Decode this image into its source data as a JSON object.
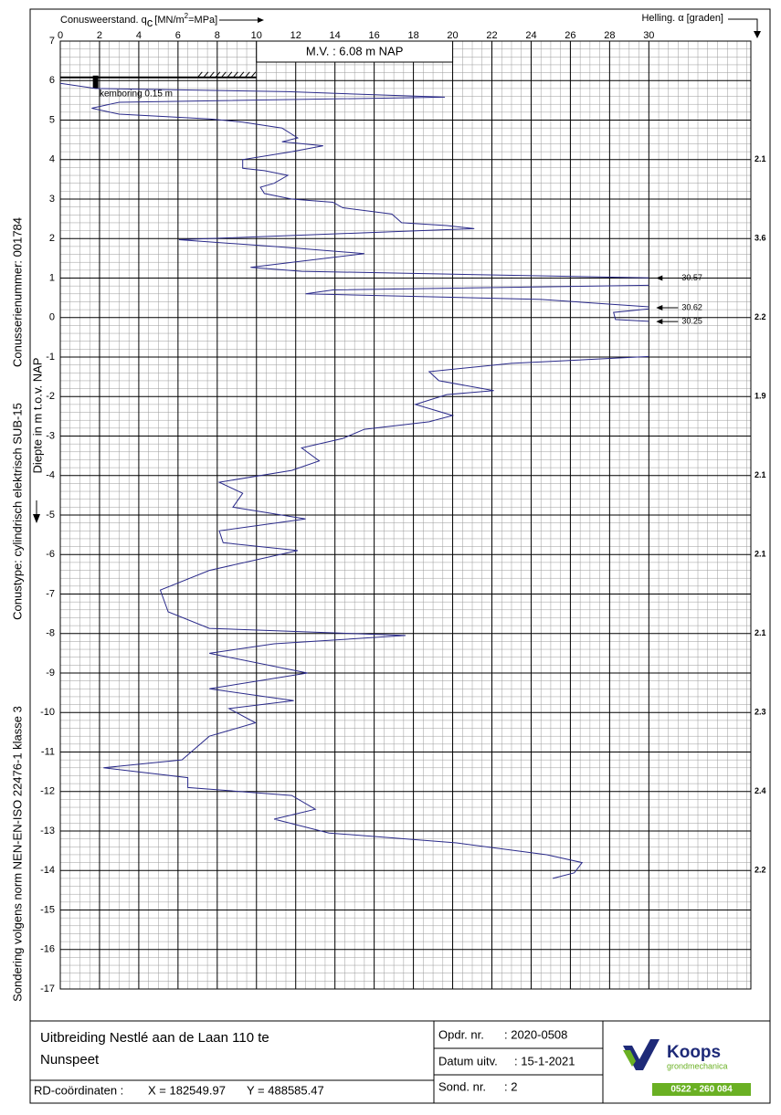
{
  "chart_data": {
    "type": "cpt",
    "x_label": [
      "Conusweerstand. q",
      "c",
      "[MN/m",
      "2",
      "=MPa]"
    ],
    "y2_label": "Helling. α [graden]",
    "y_label": "Diepte in m t.o.v. NAP",
    "side_notes": [
      "Conusserienummer:  001784",
      "Conustype: cylindrisch elektrisch SUB-15",
      "Sondering volgens norm NEN-EN-ISO 22476-1 klasse 3"
    ],
    "ground_level_note": "M.V. :  6.08    m   NAP",
    "ground_level": 6.08,
    "predrill_note": "kemboring    0.15   m",
    "xlim": [
      0,
      35.2
    ],
    "ylim": [
      7,
      -17
    ],
    "xticks": [
      0,
      2,
      4,
      6,
      8,
      10,
      12,
      14,
      16,
      18,
      20,
      22,
      24,
      26,
      28,
      30
    ],
    "yticks": [
      7,
      6,
      5,
      4,
      3,
      2,
      1,
      0,
      -1,
      -2,
      -3,
      -4,
      -5,
      -6,
      -7,
      -8,
      -9,
      -10,
      -11,
      -12,
      -13,
      -14,
      -15,
      -16,
      -17
    ],
    "minor_grid": {
      "x": 0.5,
      "y": 0.2
    },
    "grid": true,
    "clip_x": 30,
    "color": "#2a2a8a",
    "qc": [
      0,
      1.8,
      11.6,
      19.6,
      3,
      1.6,
      3,
      7.6,
      9.3,
      11.3,
      12.1,
      11.3,
      13.4,
      11.8,
      9.3,
      9.3,
      10.4,
      11.6,
      10.9,
      10.2,
      10.4,
      11.8,
      13.9,
      14.4,
      16.9,
      17.4,
      19.7,
      21.1,
      6.05,
      10.9,
      15.5,
      9.7,
      12.3,
      30.57,
      30.3,
      13.9,
      12.5,
      24.5,
      30.62,
      28.2,
      28.3,
      30.25,
      30.3,
      30.3,
      23,
      18.8,
      19.3,
      22.1,
      19.7,
      18.1,
      20,
      18.8,
      15.5,
      14.4,
      12.3,
      13.2,
      11.8,
      8.1,
      9.3,
      8.8,
      12.5,
      8.1,
      8.3,
      12.1,
      7.6,
      5.1,
      5.5,
      7.6,
      17.6,
      10.9,
      7.6,
      12.6,
      7.6,
      11.9,
      8.6,
      9.95,
      7.6,
      6.2,
      2.2,
      6.5,
      6.5,
      11.8,
      13,
      10.9,
      13.7,
      20.2,
      24.8,
      26.6,
      26.2,
      25.1
    ],
    "depth": [
      5.93,
      5.8,
      5.72,
      5.58,
      5.45,
      5.3,
      5.15,
      5.03,
      4.95,
      4.8,
      4.55,
      4.45,
      4.35,
      4.2,
      4.0,
      3.78,
      3.72,
      3.6,
      3.4,
      3.3,
      3.14,
      3.0,
      2.92,
      2.78,
      2.62,
      2.4,
      2.33,
      2.25,
      1.97,
      1.8,
      1.62,
      1.27,
      1.17,
      1.0,
      0.82,
      0.7,
      0.6,
      0.46,
      0.25,
      0.13,
      -0.05,
      -0.1,
      -0.5,
      -0.98,
      -1.16,
      -1.37,
      -1.6,
      -1.85,
      -1.95,
      -2.2,
      -2.48,
      -2.64,
      -2.83,
      -3.06,
      -3.3,
      -3.63,
      -3.87,
      -4.17,
      -4.45,
      -4.8,
      -5.1,
      -5.4,
      -5.7,
      -5.9,
      -6.4,
      -6.9,
      -7.45,
      -7.87,
      -8.05,
      -8.26,
      -8.5,
      -9.0,
      -9.4,
      -9.7,
      -9.9,
      -10.26,
      -10.6,
      -11.2,
      -11.4,
      -11.65,
      -11.9,
      -12.1,
      -12.45,
      -12.7,
      -13.05,
      -13.3,
      -13.6,
      -13.8,
      -14.06,
      -14.2
    ],
    "offscale_labels": [
      {
        "depth": 1.0,
        "value": 30.57
      },
      {
        "depth": 0.25,
        "value": 30.62
      },
      {
        "depth": -0.1,
        "value": 30.25
      }
    ],
    "inclination": {
      "depth": [
        4,
        2,
        0,
        -2,
        -4,
        -6,
        -8,
        -10,
        -12,
        -14
      ],
      "values": [
        2.1,
        3.6,
        2.2,
        1.9,
        2.1,
        2.1,
        2.1,
        2.3,
        2.4,
        2.2
      ]
    }
  },
  "footer": {
    "project": [
      "Uitbreiding Nestlé aan de Laan 110 te",
      "Nunspeet"
    ],
    "coords_label": "RD-coördinaten :",
    "x_coord": "X = 182549.97",
    "y_coord": "Y = 488585.47",
    "fields": [
      [
        "Opdr. nr.",
        ": 2020-0508"
      ],
      [
        "Datum uitv.",
        ": 15-1-2021"
      ],
      [
        "Sond. nr.",
        ":  2"
      ]
    ],
    "logo": {
      "name": "Koops",
      "sub": "grondmechanica",
      "phone": "0522 - 260 084"
    }
  }
}
